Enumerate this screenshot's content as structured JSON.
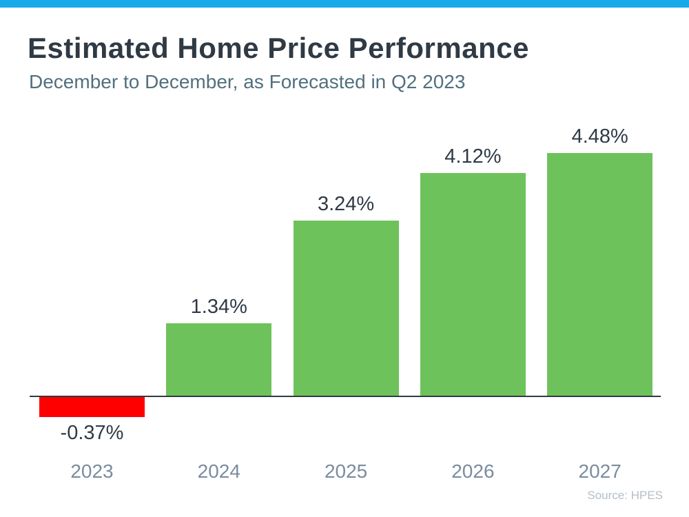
{
  "header": {
    "title": "Estimated Home Price Performance",
    "subtitle": "December to December, as Forecasted in Q2 2023"
  },
  "theme": {
    "accent_bar_blue": "#17AAE9",
    "title_color": "#2F3A44",
    "subtitle_color": "#51707E",
    "positive_bar_green": "#6EC25B",
    "negative_bar_red": "#FE0000",
    "value_label_color": "#2F3A46",
    "year_label_color": "#7A8C9E",
    "axis_color": "#2F3A44",
    "source_color": "#B4BEC8",
    "background": "#FFFFFF"
  },
  "chart_data": {
    "type": "bar",
    "title": "Estimated Home Price Performance",
    "subtitle": "December to December, as Forecasted in Q2 2023",
    "categories": [
      "2023",
      "2024",
      "2025",
      "2026",
      "2027"
    ],
    "values": [
      -0.37,
      1.34,
      3.24,
      4.12,
      4.48
    ],
    "value_labels": [
      "-0.37%",
      "1.34%",
      "3.24%",
      "4.12%",
      "4.48%"
    ],
    "unit": "%",
    "baseline": 0,
    "ylim": [
      -0.8,
      5.2
    ],
    "grid": false,
    "legend": false,
    "xlabel": "",
    "ylabel": "",
    "source": "Source: HPES"
  }
}
